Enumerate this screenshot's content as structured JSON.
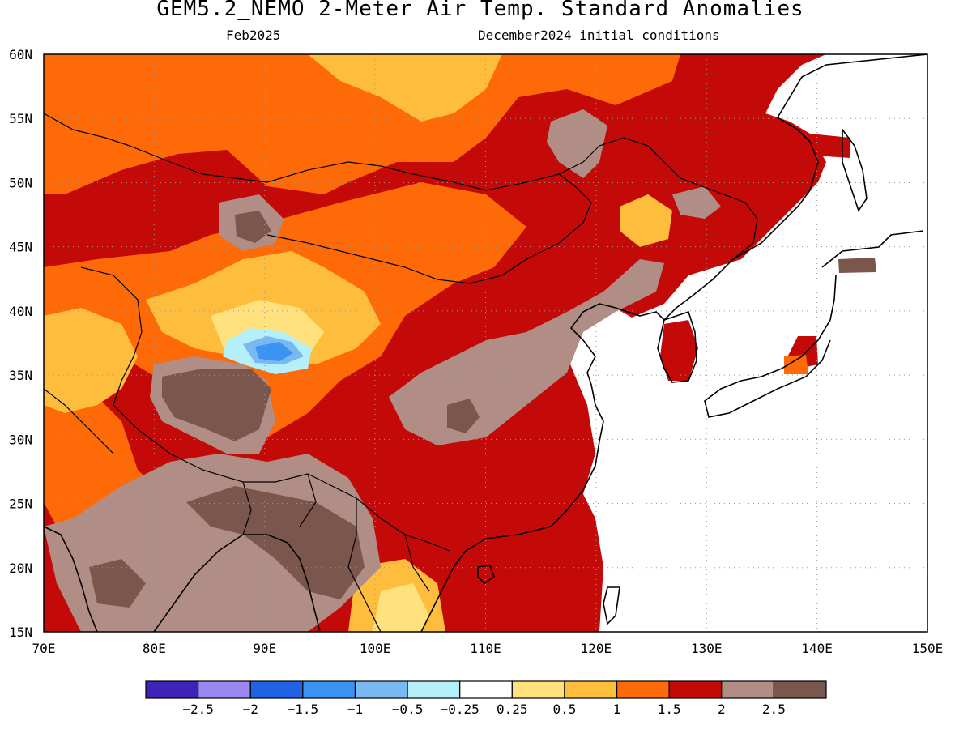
{
  "title": "GEM5.2_NEMO 2-Meter Air Temp. Standard Anomalies",
  "subtitle_left": "Feb2025",
  "subtitle_right": "December2024 initial conditions",
  "map": {
    "lon_range": [
      70,
      150
    ],
    "lat_range": [
      15,
      60
    ],
    "lat_labels": [
      "60N",
      "55N",
      "50N",
      "45N",
      "40N",
      "35N",
      "30N",
      "25N",
      "20N",
      "15N"
    ],
    "lon_labels": [
      "70E",
      "80E",
      "90E",
      "100E",
      "110E",
      "120E",
      "130E",
      "140E",
      "150E"
    ],
    "grid": "dotted"
  },
  "colorbar": {
    "colors": [
      "#3f22b8",
      "#9b87f2",
      "#1f62e4",
      "#3c94f2",
      "#78b8f3",
      "#b4effa",
      "#ffffff",
      "#ffe27e",
      "#ffbd3d",
      "#ff6a08",
      "#c30a09",
      "#b18e85",
      "#7a564c"
    ],
    "labels": [
      "−2.5",
      "−2",
      "−1.5",
      "−1",
      "−0.5",
      "−0.25",
      "0.25",
      "0.5",
      "1",
      "1.5",
      "2",
      "2.5"
    ]
  },
  "legend_icons": [
    "coastline-outline",
    "country-borders"
  ]
}
